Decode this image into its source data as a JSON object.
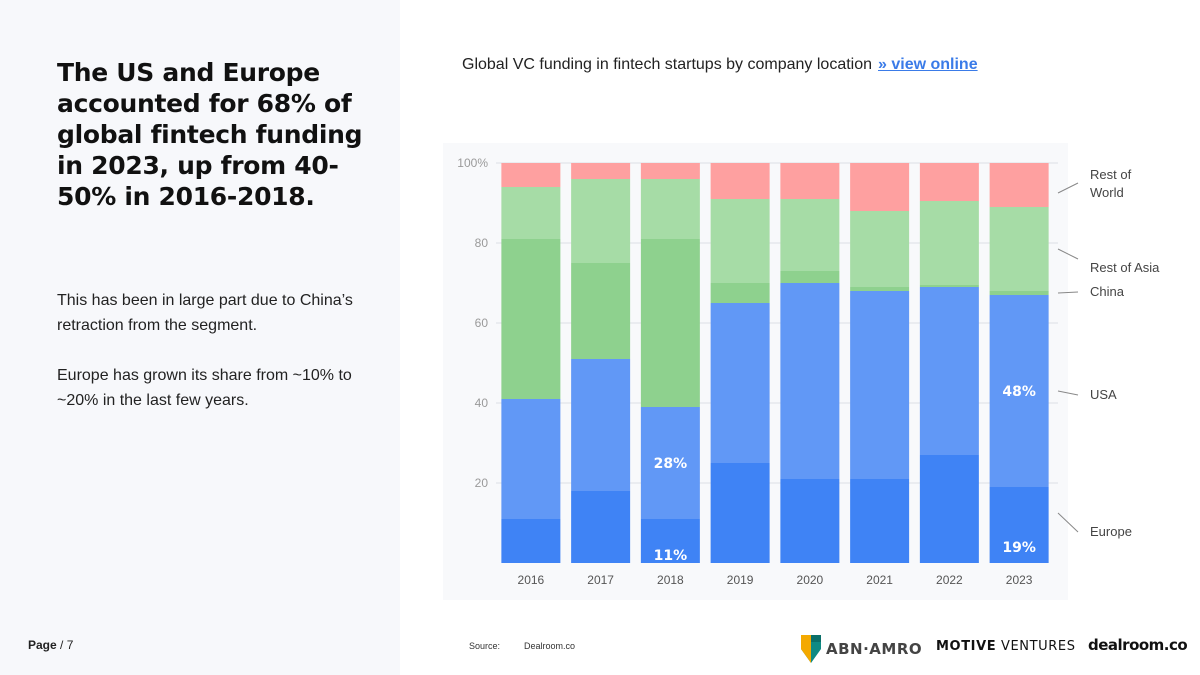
{
  "headline": "The US and Europe accounted for 68% of global fintech funding in 2023, up from 40-50% in 2016-2018.",
  "paragraphs": [
    "This has been in large part due to China’s retraction from the segment.",
    "Europe has grown its share from ~10% to ~20% in the last few years."
  ],
  "page": {
    "label": "Page",
    "number": "/ 7"
  },
  "chart_title": "Global VC funding in fintech startups by company location",
  "view_online": "» view online",
  "source": {
    "label": "Source:",
    "value": "Dealroom.co"
  },
  "logos": {
    "abn": "ABN·AMRO",
    "motive_bold": "MOTIVE",
    "motive_light": "VENTURES",
    "dealroom": "dealroom.co"
  },
  "colors": {
    "europe": "#3f83f5",
    "usa": "#6198f6",
    "china": "#8ed18e",
    "rest_of_asia": "#a6dca6",
    "rest_of_world": "#fea0a0"
  },
  "chart_data": {
    "type": "bar",
    "stacked": true,
    "categories": [
      "2016",
      "2017",
      "2018",
      "2019",
      "2020",
      "2021",
      "2022",
      "2023"
    ],
    "series": [
      {
        "name": "Europe",
        "color_key": "europe",
        "values": [
          11,
          18,
          11,
          25,
          21,
          21,
          27,
          19
        ]
      },
      {
        "name": "USA",
        "color_key": "usa",
        "values": [
          30,
          33,
          28,
          40,
          49,
          47,
          42,
          48
        ]
      },
      {
        "name": "China",
        "color_key": "china",
        "values": [
          40,
          24,
          42,
          5,
          3,
          1,
          0.5,
          1
        ]
      },
      {
        "name": "Rest of Asia",
        "color_key": "rest_of_asia",
        "values": [
          13,
          21,
          15,
          21,
          18,
          19,
          21,
          21
        ]
      },
      {
        "name": "Rest of World",
        "color_key": "rest_of_world",
        "values": [
          6,
          4,
          4,
          9,
          9,
          12,
          9.5,
          11
        ]
      }
    ],
    "data_labels": [
      {
        "text": "28%",
        "category": "2018",
        "series": "USA"
      },
      {
        "text": "11%",
        "category": "2018",
        "series": "Europe"
      },
      {
        "text": "48%",
        "category": "2023",
        "series": "USA"
      },
      {
        "text": "19%",
        "category": "2023",
        "series": "Europe"
      }
    ],
    "legend": [
      {
        "text": "Rest of World",
        "lines": [
          "Rest of",
          "World"
        ],
        "series": "Rest of World"
      },
      {
        "text": "Rest of Asia",
        "lines": [
          "Rest of Asia"
        ],
        "series": "Rest of Asia"
      },
      {
        "text": "China",
        "lines": [
          "China"
        ],
        "series": "China"
      },
      {
        "text": "USA",
        "lines": [
          "USA"
        ],
        "series": "USA"
      },
      {
        "text": "Europe",
        "lines": [
          "Europe"
        ],
        "series": "Europe"
      }
    ],
    "y_ticks": [
      "20",
      "40",
      "60",
      "80",
      "100%"
    ],
    "ylim": [
      0,
      100
    ],
    "xlabel": "",
    "ylabel": "",
    "grid": true,
    "legend_position": "right"
  }
}
